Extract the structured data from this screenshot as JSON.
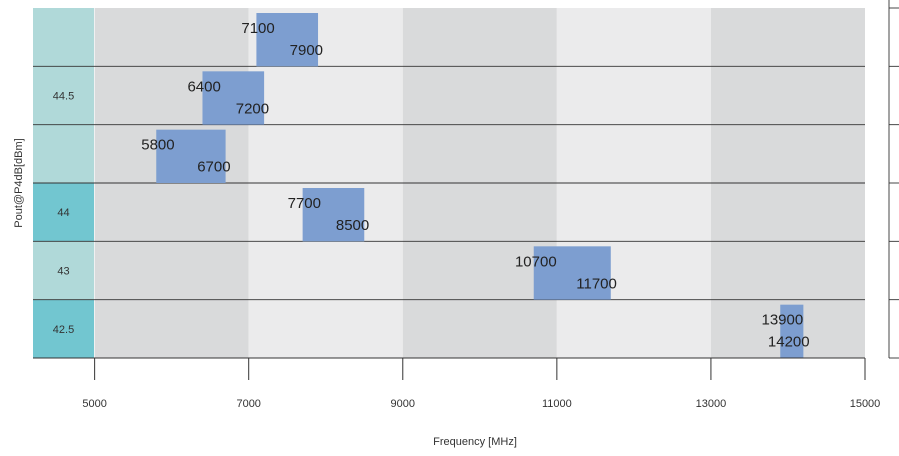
{
  "chart_data": {
    "type": "bar",
    "orientation": "horizontal-range",
    "xlabel": "Frequency [MHz]",
    "ylabel": "Pout@P4dB[dBm]",
    "xlim": [
      4200,
      15000
    ],
    "xticks": [
      5000,
      7000,
      9000,
      11000,
      13000,
      15000
    ],
    "grid": true,
    "groups": [
      {
        "label": "44.5",
        "rows": 3,
        "color": "#b0d9d9"
      },
      {
        "label": "44",
        "rows": 1,
        "color": "#72c6d0"
      },
      {
        "label": "43",
        "rows": 1,
        "color": "#b0d9d9"
      },
      {
        "label": "42.5",
        "rows": 1,
        "color": "#72c6d0"
      }
    ],
    "ranges": [
      {
        "group": "44.5",
        "start": 7100,
        "end": 7900,
        "start_label": "7100",
        "end_label": "7900"
      },
      {
        "group": "44.5",
        "start": 6400,
        "end": 7200,
        "start_label": "6400",
        "end_label": "7200"
      },
      {
        "group": "44.5",
        "start": 5800,
        "end": 6700,
        "start_label": "5800",
        "end_label": "6700"
      },
      {
        "group": "44",
        "start": 7700,
        "end": 8500,
        "start_label": "7700",
        "end_label": "8500"
      },
      {
        "group": "43",
        "start": 10700,
        "end": 11700,
        "start_label": "10700",
        "end_label": "11700"
      },
      {
        "group": "42.5",
        "start": 13900,
        "end": 14200,
        "start_label": "13900",
        "end_label": "14200"
      }
    ],
    "bar_color": "#7d9ed0"
  }
}
